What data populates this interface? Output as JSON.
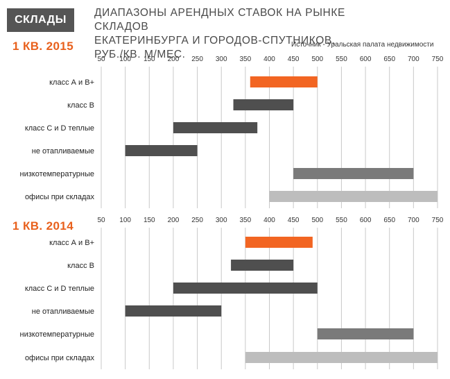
{
  "header": {
    "badge": "СКЛАДЫ",
    "title_lines": [
      "ДИАПАЗОНЫ АРЕНДНЫХ СТАВОК НА РЫНКЕ СКЛАДОВ",
      "ЕКАТЕРИНБУРГА И ГОРОДОВ-СПУТНИКОВ,",
      "РУБ./КВ. М/МЕС."
    ],
    "source": "Источник - Уральская палата недвижимости"
  },
  "colors": {
    "accent": "#f26522",
    "dark": "#4f4f4f",
    "mid": "#7a7a7a",
    "light": "#bdbdbd",
    "grid": "#c8c8c8"
  },
  "chart_data": [
    {
      "type": "bar",
      "subtype": "range",
      "title": "1 КВ. 2015",
      "xlim": [
        50,
        750
      ],
      "ticks": [
        50,
        100,
        150,
        200,
        250,
        300,
        350,
        400,
        450,
        500,
        550,
        600,
        650,
        700,
        750
      ],
      "categories": [
        "класс А и В+",
        "класс В",
        "класс С и D теплые",
        "не отапливаемые",
        "низкотемпературные",
        "офисы при складах"
      ],
      "ranges": [
        [
          360,
          500
        ],
        [
          325,
          450
        ],
        [
          200,
          375
        ],
        [
          100,
          250
        ],
        [
          450,
          700
        ],
        [
          400,
          750
        ]
      ],
      "colors": [
        "accent",
        "dark",
        "dark",
        "dark",
        "mid",
        "light"
      ]
    },
    {
      "type": "bar",
      "subtype": "range",
      "title": "1 КВ. 2014",
      "xlim": [
        50,
        750
      ],
      "ticks": [
        50,
        100,
        150,
        200,
        250,
        300,
        350,
        400,
        450,
        500,
        550,
        600,
        650,
        700,
        750
      ],
      "categories": [
        "класс А и В+",
        "класс В",
        "класс С и D теплые",
        "не отапливаемые",
        "низкотемпературные",
        "офисы при складах"
      ],
      "ranges": [
        [
          350,
          490
        ],
        [
          320,
          450
        ],
        [
          200,
          500
        ],
        [
          100,
          300
        ],
        [
          500,
          700
        ],
        [
          350,
          750
        ]
      ],
      "colors": [
        "accent",
        "dark",
        "dark",
        "dark",
        "mid",
        "light"
      ]
    }
  ]
}
